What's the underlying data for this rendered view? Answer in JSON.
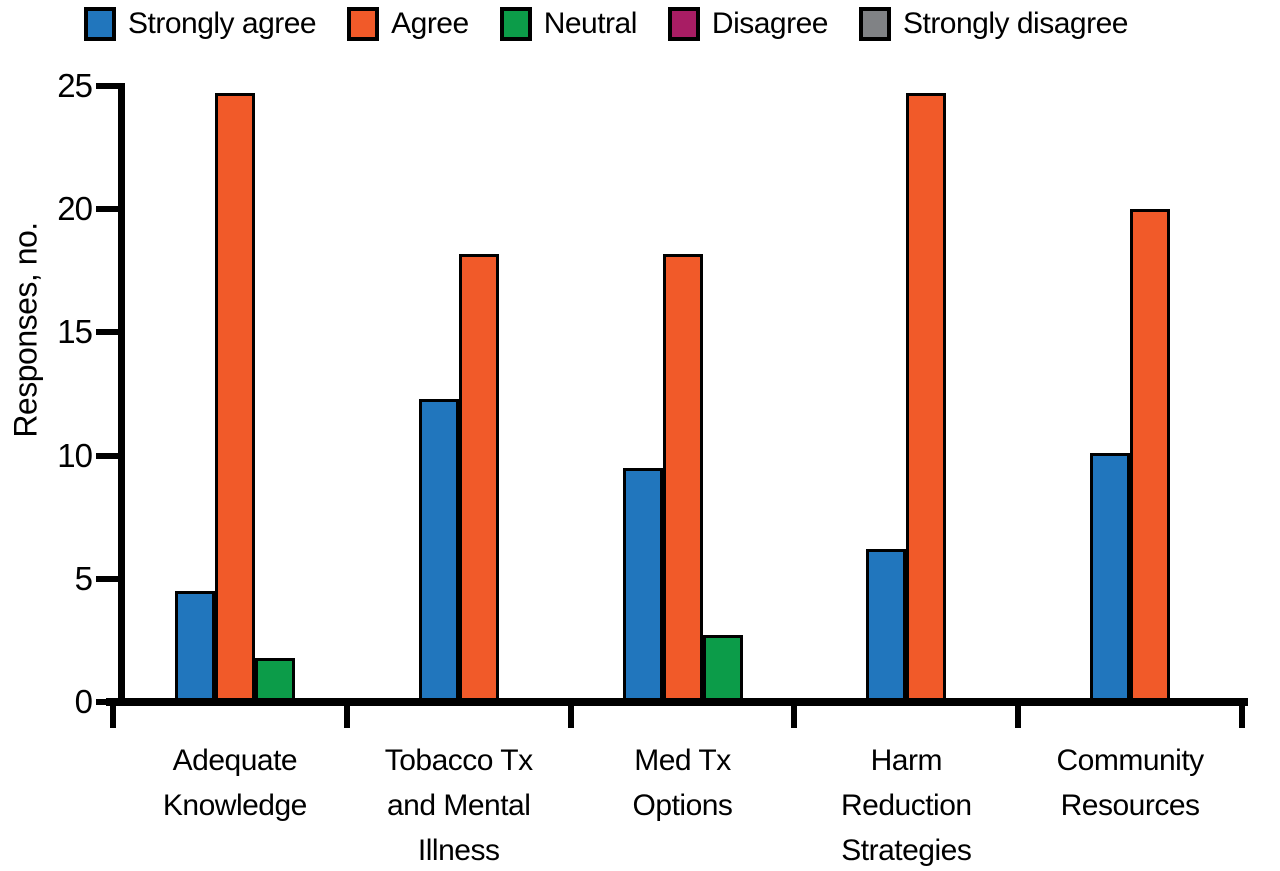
{
  "chart_data": {
    "type": "bar",
    "title": "",
    "xlabel": "",
    "ylabel": "Responses, no.",
    "ylim": [
      0,
      25
    ],
    "yticks": [
      0,
      5,
      10,
      15,
      20,
      25
    ],
    "grid": false,
    "legend_position": "top",
    "categories": [
      "Adequate Knowledge",
      "Tobacco Tx and Mental Illness",
      "Med Tx Options",
      "Harm Reduction Strategies",
      "Community Resources"
    ],
    "category_label_lines": [
      [
        "Adequate",
        "Knowledge"
      ],
      [
        "Tobacco Tx",
        "and Mental",
        "Illness"
      ],
      [
        "Med Tx",
        "Options"
      ],
      [
        "Harm",
        "Reduction",
        "Strategies"
      ],
      [
        "Community",
        "Resources"
      ]
    ],
    "series": [
      {
        "name": "Strongly agree",
        "color": "#2176BD",
        "values": [
          4.5,
          12.3,
          9.5,
          6.2,
          10.1
        ]
      },
      {
        "name": "Agree",
        "color": "#F15A29",
        "values": [
          24.7,
          18.2,
          18.2,
          24.7,
          20.0
        ]
      },
      {
        "name": "Neutral",
        "color": "#0C9C49",
        "values": [
          1.8,
          0,
          2.7,
          0,
          0
        ]
      },
      {
        "name": "Disagree",
        "color": "#A81D64",
        "values": [
          0,
          0,
          0,
          0,
          0
        ]
      },
      {
        "name": "Strongly disagree",
        "color": "#808285",
        "values": [
          0,
          0,
          0,
          0,
          0
        ]
      }
    ]
  }
}
